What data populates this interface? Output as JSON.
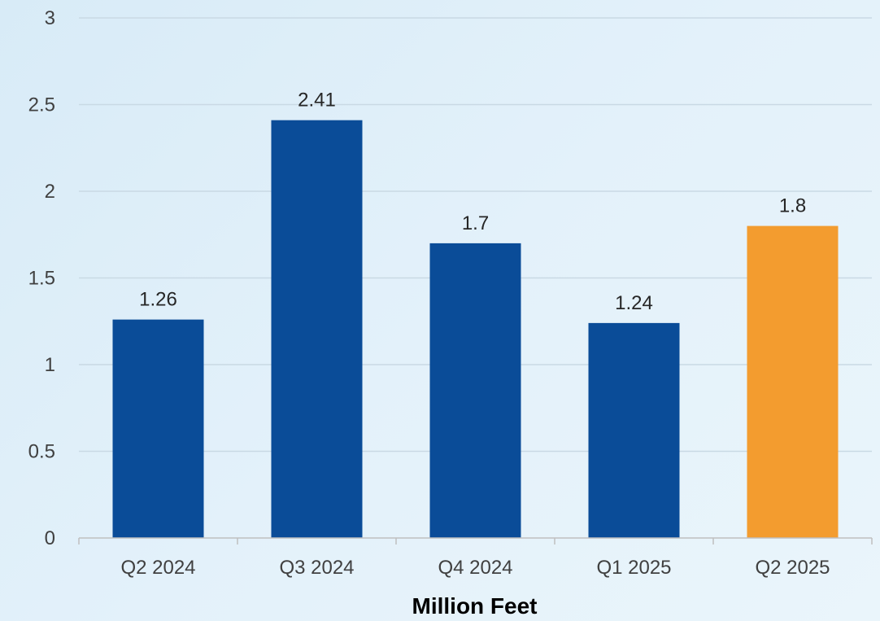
{
  "chart_data": {
    "type": "bar",
    "categories": [
      "Q2 2024",
      "Q3 2024",
      "Q4 2024",
      "Q1 2025",
      "Q2 2025"
    ],
    "values": [
      1.26,
      2.41,
      1.7,
      1.24,
      1.8
    ],
    "data_labels": [
      "1.26",
      "2.41",
      "1.7",
      "1.24",
      "1.8"
    ],
    "bar_colors": [
      "#0a4c98",
      "#0a4c98",
      "#0a4c98",
      "#0a4c98",
      "#f39c2f"
    ],
    "xlabel": "Million Feet",
    "ylabel": "",
    "ylim": [
      0,
      3
    ],
    "y_ticks": [
      0,
      0.5,
      1,
      1.5,
      2,
      2.5,
      3
    ],
    "y_tick_labels": [
      "0",
      "0.5",
      "1",
      "1.5",
      "2",
      "2.5",
      "3"
    ],
    "grid": true,
    "legend": "none"
  }
}
